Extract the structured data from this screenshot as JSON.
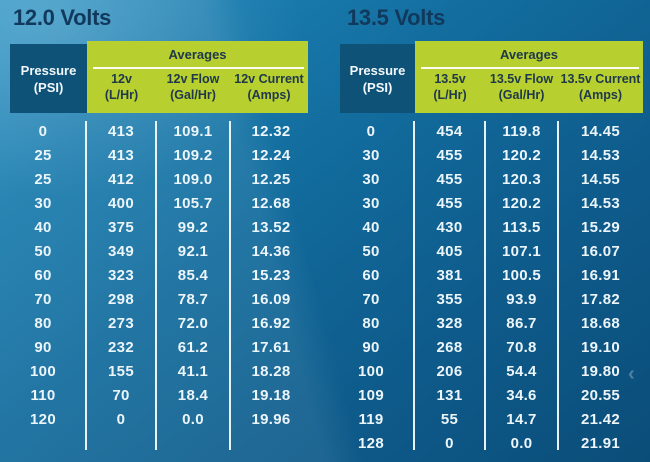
{
  "icons": {
    "carousel_prev": "‹"
  },
  "colors": {
    "background_top": "#2b93c4",
    "background_bottom": "#0b4d79",
    "pressure_cell_blue": "#0e5277",
    "averages_green": "#b7cf2f",
    "header_text_dark": "#20394a",
    "title_navy": "#11395c",
    "body_text": "#ecf5fa"
  },
  "chart_data": [
    {
      "type": "table",
      "title": "12.0 Volts",
      "pressure_col": {
        "line1": "Pressure",
        "line2": "(PSI)"
      },
      "averages_label": "Averages",
      "value_columns": [
        {
          "line1": "12v",
          "line2": "(L/Hr)"
        },
        {
          "line1": "12v Flow",
          "line2": "(Gal/Hr)"
        },
        {
          "line1": "12v Current",
          "line2": "(Amps)"
        }
      ],
      "rows": [
        [
          "0",
          "413",
          "109.1",
          "12.32"
        ],
        [
          "25",
          "413",
          "109.2",
          "12.24"
        ],
        [
          "25",
          "412",
          "109.0",
          "12.25"
        ],
        [
          "30",
          "400",
          "105.7",
          "12.68"
        ],
        [
          "40",
          "375",
          "99.2",
          "13.52"
        ],
        [
          "50",
          "349",
          "92.1",
          "14.36"
        ],
        [
          "60",
          "323",
          "85.4",
          "15.23"
        ],
        [
          "70",
          "298",
          "78.7",
          "16.09"
        ],
        [
          "80",
          "273",
          "72.0",
          "16.92"
        ],
        [
          "90",
          "232",
          "61.2",
          "17.61"
        ],
        [
          "100",
          "155",
          "41.1",
          "18.28"
        ],
        [
          "110",
          "70",
          "18.4",
          "19.18"
        ],
        [
          "120",
          "0",
          "0.0",
          "19.96"
        ]
      ]
    },
    {
      "type": "table",
      "title": "13.5 Volts",
      "pressure_col": {
        "line1": "Pressure",
        "line2": "(PSI)"
      },
      "averages_label": "Averages",
      "value_columns": [
        {
          "line1": "13.5v",
          "line2": "(L/Hr)"
        },
        {
          "line1": "13.5v Flow",
          "line2": "(Gal/Hr)"
        },
        {
          "line1": "13.5v Current",
          "line2": "(Amps)"
        }
      ],
      "rows": [
        [
          "0",
          "454",
          "119.8",
          "14.45"
        ],
        [
          "30",
          "455",
          "120.2",
          "14.53"
        ],
        [
          "30",
          "455",
          "120.3",
          "14.55"
        ],
        [
          "30",
          "455",
          "120.2",
          "14.53"
        ],
        [
          "40",
          "430",
          "113.5",
          "15.29"
        ],
        [
          "50",
          "405",
          "107.1",
          "16.07"
        ],
        [
          "60",
          "381",
          "100.5",
          "16.91"
        ],
        [
          "70",
          "355",
          "93.9",
          "17.82"
        ],
        [
          "80",
          "328",
          "86.7",
          "18.68"
        ],
        [
          "90",
          "268",
          "70.8",
          "19.10"
        ],
        [
          "100",
          "206",
          "54.4",
          "19.80"
        ],
        [
          "109",
          "131",
          "34.6",
          "20.55"
        ],
        [
          "119",
          "55",
          "14.7",
          "21.42"
        ],
        [
          "128",
          "0",
          "0.0",
          "21.91"
        ]
      ]
    }
  ]
}
